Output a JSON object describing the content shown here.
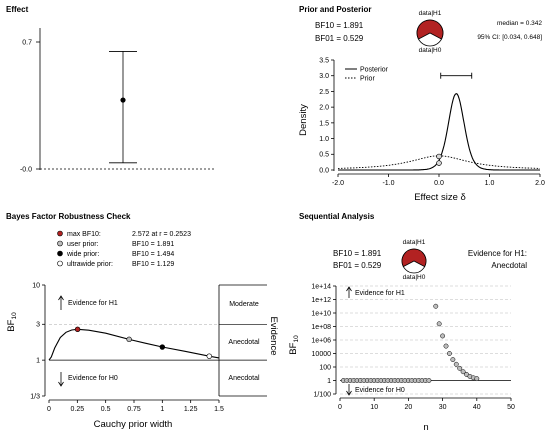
{
  "chart_data": [
    {
      "type": "scatter",
      "panel": "effect",
      "title": "Effect",
      "y_ticks": [
        "0.7",
        "-0.0"
      ],
      "point": {
        "estimate": 0.38,
        "lower": 0.034,
        "upper": 0.648
      },
      "ylim": [
        0,
        0.7
      ]
    },
    {
      "type": "line",
      "panel": "prior-posterior",
      "title": "Prior and Posterior",
      "xlabel": "Effect size δ",
      "ylabel": "Density",
      "x_ticks": [
        "-2.0",
        "-1.0",
        "0.0",
        "1.0",
        "2.0"
      ],
      "y_ticks": [
        "0.0",
        "0.5",
        "1.0",
        "1.5",
        "2.0",
        "2.5",
        "3.0",
        "3.5"
      ],
      "xlim": [
        -2,
        2
      ],
      "ylim": [
        0,
        3.5
      ],
      "bf10_label": "BF10 = 1.891",
      "bf01_label": "BF01 = 0.529",
      "median_label": "median = 0.342",
      "ci_label": "95% CI: [0.034, 0.648]",
      "pie": {
        "top_label": "data|H1",
        "bottom_label": "data|H0",
        "h1_fraction": 0.654
      },
      "series": [
        {
          "name": "Posterior",
          "style": "solid",
          "location": 0.342,
          "scale": 0.16,
          "df": 10
        },
        {
          "name": "Prior",
          "style": "dotted",
          "location": 0,
          "scale": 0.707,
          "df": 1
        }
      ],
      "ci_bar": [
        0.034,
        0.648
      ],
      "points_at_zero": [
        0.43,
        0.22
      ]
    },
    {
      "type": "line",
      "panel": "robustness",
      "title": "Bayes Factor Robustness Check",
      "xlabel": "Cauchy prior width",
      "ylabel": "BF10",
      "right_label": "Evidence",
      "x_ticks": [
        "0",
        "0.25",
        "0.5",
        "0.75",
        "1",
        "1.25",
        "1.5"
      ],
      "y_ticks": [
        "10",
        "3",
        "1",
        "1/3"
      ],
      "y_tick_values": [
        10,
        3,
        1,
        0.3333
      ],
      "xlim": [
        0,
        1.5
      ],
      "ylim_log": [
        0.3333,
        10
      ],
      "evidence_regions": [
        "Moderate",
        "Anecdotal",
        "Anecdotal"
      ],
      "arrow_up": "Evidence for H1",
      "arrow_down": "Evidence for H0",
      "legend": [
        {
          "label": "max BF10:",
          "value": "2.572 at r = 0.2523",
          "fill": "#b22222"
        },
        {
          "label": "user prior:",
          "value": "BF10 = 1.891",
          "fill": "#bdbdbd"
        },
        {
          "label": "wide prior:",
          "value": "BF10 = 1.494",
          "fill": "#000000"
        },
        {
          "label": "ultrawide prior:",
          "value": "BF10 = 1.129",
          "fill": "#ffffff"
        }
      ],
      "curve": [
        {
          "r": 0,
          "bf": 1.0
        },
        {
          "r": 0.02,
          "bf": 1.1
        },
        {
          "r": 0.05,
          "bf": 1.45
        },
        {
          "r": 0.1,
          "bf": 2.0
        },
        {
          "r": 0.15,
          "bf": 2.35
        },
        {
          "r": 0.2,
          "bf": 2.52
        },
        {
          "r": 0.2523,
          "bf": 2.572
        },
        {
          "r": 0.35,
          "bf": 2.5
        },
        {
          "r": 0.5,
          "bf": 2.28
        },
        {
          "r": 0.7071,
          "bf": 1.891
        },
        {
          "r": 0.85,
          "bf": 1.68
        },
        {
          "r": 1.0,
          "bf": 1.494
        },
        {
          "r": 1.2,
          "bf": 1.31
        },
        {
          "r": 1.4142,
          "bf": 1.129
        },
        {
          "r": 1.5,
          "bf": 1.07
        }
      ],
      "markers": [
        {
          "r": 0.2523,
          "bf": 2.572,
          "fill": "#b22222"
        },
        {
          "r": 0.7071,
          "bf": 1.891,
          "fill": "#bdbdbd"
        },
        {
          "r": 1.0,
          "bf": 1.494,
          "fill": "#000000"
        },
        {
          "r": 1.4142,
          "bf": 1.129,
          "fill": "#ffffff"
        }
      ]
    },
    {
      "type": "scatter",
      "panel": "sequential",
      "title": "Sequential Analysis",
      "xlabel": "n",
      "ylabel": "BF10",
      "x_ticks": [
        "0",
        "10",
        "20",
        "30",
        "40",
        "50"
      ],
      "y_ticks": [
        "1e+14",
        "1e+12",
        "1e+10",
        "1e+08",
        "1e+06",
        "10000",
        "100",
        "1",
        "1/100"
      ],
      "y_tick_exponents": [
        14,
        12,
        10,
        8,
        6,
        4,
        2,
        0,
        -2
      ],
      "xlim": [
        0,
        50
      ],
      "ylim_log10": [
        -2,
        14
      ],
      "bf10_label": "BF10 = 1.891",
      "bf01_label": "BF01 = 0.529",
      "evidence_text": [
        "Evidence for H1:",
        "Anecdotal"
      ],
      "pie": {
        "top_label": "data|H1",
        "bottom_label": "data|H0",
        "h1_fraction": 0.654
      },
      "arrow_up": "Evidence for H1",
      "arrow_down": "Evidence for H0",
      "points": [
        {
          "n": 1,
          "log10bf": 0
        },
        {
          "n": 2,
          "log10bf": 0
        },
        {
          "n": 3,
          "log10bf": 0
        },
        {
          "n": 4,
          "log10bf": 0
        },
        {
          "n": 5,
          "log10bf": 0
        },
        {
          "n": 6,
          "log10bf": 0
        },
        {
          "n": 7,
          "log10bf": 0
        },
        {
          "n": 8,
          "log10bf": 0
        },
        {
          "n": 9,
          "log10bf": 0
        },
        {
          "n": 10,
          "log10bf": 0
        },
        {
          "n": 11,
          "log10bf": 0
        },
        {
          "n": 12,
          "log10bf": 0
        },
        {
          "n": 13,
          "log10bf": 0
        },
        {
          "n": 14,
          "log10bf": 0
        },
        {
          "n": 15,
          "log10bf": 0
        },
        {
          "n": 16,
          "log10bf": 0
        },
        {
          "n": 17,
          "log10bf": 0
        },
        {
          "n": 18,
          "log10bf": 0
        },
        {
          "n": 19,
          "log10bf": 0
        },
        {
          "n": 20,
          "log10bf": 0
        },
        {
          "n": 21,
          "log10bf": 0
        },
        {
          "n": 22,
          "log10bf": 0
        },
        {
          "n": 23,
          "log10bf": 0
        },
        {
          "n": 24,
          "log10bf": 0
        },
        {
          "n": 25,
          "log10bf": 0
        },
        {
          "n": 26,
          "log10bf": 0
        },
        {
          "n": 28,
          "log10bf": 11
        },
        {
          "n": 29,
          "log10bf": 8.4
        },
        {
          "n": 30,
          "log10bf": 6.6
        },
        {
          "n": 31,
          "log10bf": 5.1
        },
        {
          "n": 32,
          "log10bf": 4.0
        },
        {
          "n": 33,
          "log10bf": 3.1
        },
        {
          "n": 34,
          "log10bf": 2.4
        },
        {
          "n": 35,
          "log10bf": 1.8
        },
        {
          "n": 36,
          "log10bf": 1.3
        },
        {
          "n": 37,
          "log10bf": 0.9
        },
        {
          "n": 38,
          "log10bf": 0.6
        },
        {
          "n": 39,
          "log10bf": 0.4
        },
        {
          "n": 40,
          "log10bf": 0.28
        }
      ]
    }
  ]
}
